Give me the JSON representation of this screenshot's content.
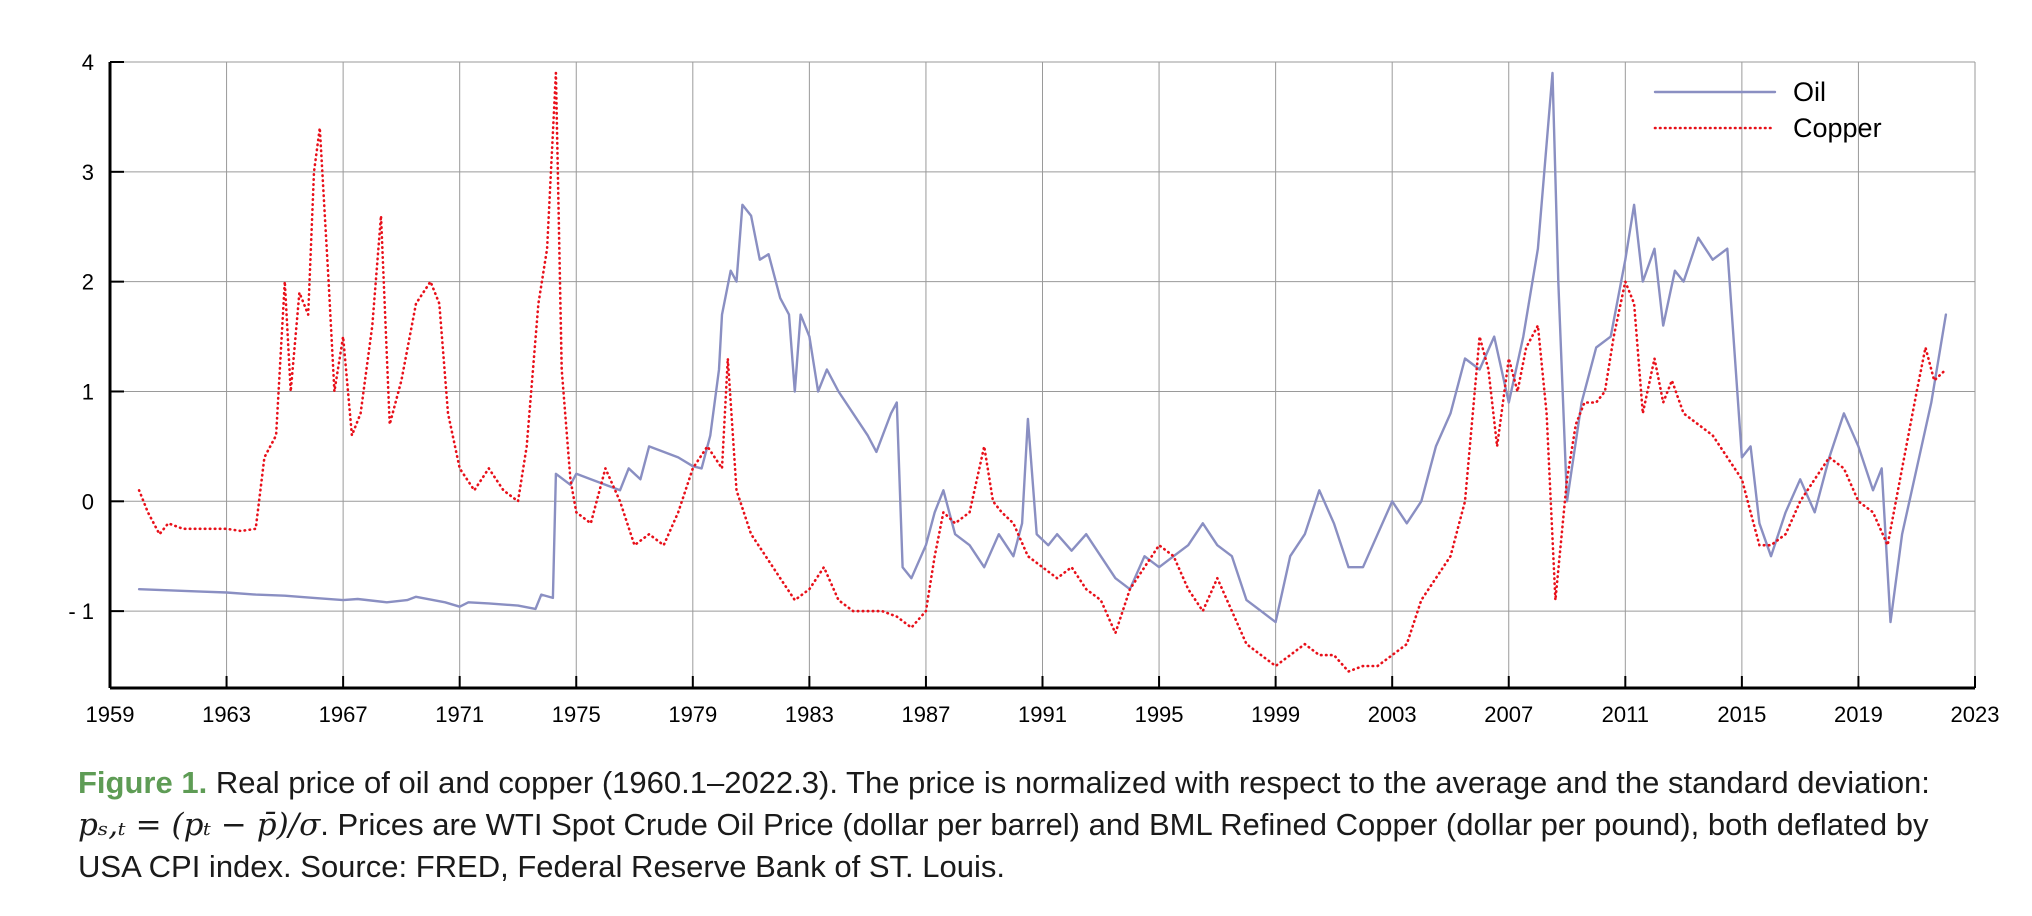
{
  "chart_data": {
    "type": "line",
    "title": "",
    "xlabel": "",
    "ylabel": "",
    "xlim": [
      1959,
      2023
    ],
    "ylim": [
      -1.7,
      4
    ],
    "x_ticks": [
      1959,
      1963,
      1967,
      1971,
      1975,
      1979,
      1983,
      1987,
      1991,
      1995,
      1999,
      2003,
      2007,
      2011,
      2015,
      2019,
      2023
    ],
    "x_tick_labels": [
      "1959",
      "1963",
      "1967",
      "1971",
      "1975",
      "1979",
      "1983",
      "1987",
      "1991",
      "1995",
      "1999",
      "2003",
      "2007",
      "2011",
      "2015",
      "2019",
      "2023"
    ],
    "y_ticks": [
      -1,
      0,
      1,
      2,
      3,
      4
    ],
    "y_tick_labels": [
      "- 1",
      "0",
      "1",
      "2",
      "3",
      "4"
    ],
    "grid": true,
    "legend_position": "top-right",
    "series": [
      {
        "name": "Oil",
        "style": "solid",
        "color": "#8a8fc2",
        "points": [
          [
            1960.0,
            -0.8
          ],
          [
            1961.0,
            -0.81
          ],
          [
            1962.0,
            -0.82
          ],
          [
            1963.0,
            -0.83
          ],
          [
            1964.0,
            -0.85
          ],
          [
            1965.0,
            -0.86
          ],
          [
            1966.0,
            -0.88
          ],
          [
            1967.0,
            -0.9
          ],
          [
            1967.5,
            -0.89
          ],
          [
            1968.5,
            -0.92
          ],
          [
            1969.2,
            -0.9
          ],
          [
            1969.5,
            -0.87
          ],
          [
            1970.5,
            -0.92
          ],
          [
            1971.0,
            -0.96
          ],
          [
            1971.3,
            -0.92
          ],
          [
            1972.0,
            -0.93
          ],
          [
            1973.0,
            -0.95
          ],
          [
            1973.6,
            -0.98
          ],
          [
            1973.8,
            -0.85
          ],
          [
            1974.2,
            -0.88
          ],
          [
            1974.3,
            0.25
          ],
          [
            1974.8,
            0.15
          ],
          [
            1975.0,
            0.25
          ],
          [
            1975.5,
            0.2
          ],
          [
            1976.0,
            0.15
          ],
          [
            1976.5,
            0.1
          ],
          [
            1976.8,
            0.3
          ],
          [
            1977.2,
            0.2
          ],
          [
            1977.5,
            0.5
          ],
          [
            1978.0,
            0.45
          ],
          [
            1978.5,
            0.4
          ],
          [
            1979.0,
            0.32
          ],
          [
            1979.3,
            0.3
          ],
          [
            1979.6,
            0.6
          ],
          [
            1979.9,
            1.2
          ],
          [
            1980.0,
            1.7
          ],
          [
            1980.3,
            2.1
          ],
          [
            1980.5,
            2.0
          ],
          [
            1980.7,
            2.7
          ],
          [
            1981.0,
            2.6
          ],
          [
            1981.3,
            2.2
          ],
          [
            1981.6,
            2.25
          ],
          [
            1982.0,
            1.85
          ],
          [
            1982.3,
            1.7
          ],
          [
            1982.5,
            1.0
          ],
          [
            1982.7,
            1.7
          ],
          [
            1983.0,
            1.5
          ],
          [
            1983.3,
            1.0
          ],
          [
            1983.6,
            1.2
          ],
          [
            1984.0,
            1.0
          ],
          [
            1984.5,
            0.8
          ],
          [
            1985.0,
            0.6
          ],
          [
            1985.3,
            0.45
          ],
          [
            1985.8,
            0.8
          ],
          [
            1986.0,
            0.9
          ],
          [
            1986.2,
            -0.6
          ],
          [
            1986.5,
            -0.7
          ],
          [
            1987.0,
            -0.4
          ],
          [
            1987.3,
            -0.1
          ],
          [
            1987.6,
            0.1
          ],
          [
            1988.0,
            -0.3
          ],
          [
            1988.5,
            -0.4
          ],
          [
            1989.0,
            -0.6
          ],
          [
            1989.5,
            -0.3
          ],
          [
            1990.0,
            -0.5
          ],
          [
            1990.3,
            -0.2
          ],
          [
            1990.5,
            0.75
          ],
          [
            1990.8,
            -0.3
          ],
          [
            1991.2,
            -0.4
          ],
          [
            1991.5,
            -0.3
          ],
          [
            1992.0,
            -0.45
          ],
          [
            1992.5,
            -0.3
          ],
          [
            1993.0,
            -0.5
          ],
          [
            1993.5,
            -0.7
          ],
          [
            1994.0,
            -0.8
          ],
          [
            1994.5,
            -0.5
          ],
          [
            1995.0,
            -0.6
          ],
          [
            1995.5,
            -0.5
          ],
          [
            1996.0,
            -0.4
          ],
          [
            1996.5,
            -0.2
          ],
          [
            1997.0,
            -0.4
          ],
          [
            1997.5,
            -0.5
          ],
          [
            1998.0,
            -0.9
          ],
          [
            1998.5,
            -1.0
          ],
          [
            1999.0,
            -1.1
          ],
          [
            1999.5,
            -0.5
          ],
          [
            2000.0,
            -0.3
          ],
          [
            2000.5,
            0.1
          ],
          [
            2001.0,
            -0.2
          ],
          [
            2001.5,
            -0.6
          ],
          [
            2002.0,
            -0.6
          ],
          [
            2002.5,
            -0.3
          ],
          [
            2003.0,
            0.0
          ],
          [
            2003.5,
            -0.2
          ],
          [
            2004.0,
            0.0
          ],
          [
            2004.5,
            0.5
          ],
          [
            2005.0,
            0.8
          ],
          [
            2005.5,
            1.3
          ],
          [
            2006.0,
            1.2
          ],
          [
            2006.5,
            1.5
          ],
          [
            2007.0,
            0.9
          ],
          [
            2007.5,
            1.5
          ],
          [
            2008.0,
            2.3
          ],
          [
            2008.5,
            3.9
          ],
          [
            2008.7,
            2.0
          ],
          [
            2009.0,
            0.0
          ],
          [
            2009.5,
            0.9
          ],
          [
            2010.0,
            1.4
          ],
          [
            2010.5,
            1.5
          ],
          [
            2011.0,
            2.2
          ],
          [
            2011.3,
            2.7
          ],
          [
            2011.6,
            2.0
          ],
          [
            2012.0,
            2.3
          ],
          [
            2012.3,
            1.6
          ],
          [
            2012.7,
            2.1
          ],
          [
            2013.0,
            2.0
          ],
          [
            2013.5,
            2.4
          ],
          [
            2014.0,
            2.2
          ],
          [
            2014.5,
            2.3
          ],
          [
            2015.0,
            0.4
          ],
          [
            2015.3,
            0.5
          ],
          [
            2015.6,
            -0.2
          ],
          [
            2016.0,
            -0.5
          ],
          [
            2016.5,
            -0.1
          ],
          [
            2017.0,
            0.2
          ],
          [
            2017.5,
            -0.1
          ],
          [
            2018.0,
            0.4
          ],
          [
            2018.5,
            0.8
          ],
          [
            2019.0,
            0.5
          ],
          [
            2019.5,
            0.1
          ],
          [
            2019.8,
            0.3
          ],
          [
            2020.1,
            -1.1
          ],
          [
            2020.5,
            -0.3
          ],
          [
            2021.0,
            0.3
          ],
          [
            2021.5,
            0.9
          ],
          [
            2022.0,
            1.7
          ]
        ]
      },
      {
        "name": "Copper",
        "style": "dotted",
        "color": "#e8101a",
        "points": [
          [
            1960.0,
            0.1
          ],
          [
            1960.3,
            -0.1
          ],
          [
            1960.7,
            -0.3
          ],
          [
            1961.0,
            -0.2
          ],
          [
            1961.5,
            -0.25
          ],
          [
            1962.0,
            -0.25
          ],
          [
            1963.0,
            -0.25
          ],
          [
            1963.5,
            -0.27
          ],
          [
            1964.0,
            -0.25
          ],
          [
            1964.3,
            0.4
          ],
          [
            1964.7,
            0.6
          ],
          [
            1965.0,
            2.0
          ],
          [
            1965.2,
            1.0
          ],
          [
            1965.5,
            1.9
          ],
          [
            1965.8,
            1.7
          ],
          [
            1966.0,
            3.0
          ],
          [
            1966.2,
            3.4
          ],
          [
            1966.5,
            2.0
          ],
          [
            1966.7,
            1.0
          ],
          [
            1967.0,
            1.5
          ],
          [
            1967.3,
            0.6
          ],
          [
            1967.6,
            0.8
          ],
          [
            1968.0,
            1.6
          ],
          [
            1968.3,
            2.6
          ],
          [
            1968.6,
            0.7
          ],
          [
            1969.0,
            1.1
          ],
          [
            1969.5,
            1.8
          ],
          [
            1970.0,
            2.0
          ],
          [
            1970.3,
            1.8
          ],
          [
            1970.6,
            0.8
          ],
          [
            1971.0,
            0.3
          ],
          [
            1971.5,
            0.1
          ],
          [
            1972.0,
            0.3
          ],
          [
            1972.5,
            0.1
          ],
          [
            1973.0,
            0.0
          ],
          [
            1973.3,
            0.5
          ],
          [
            1973.7,
            1.8
          ],
          [
            1974.0,
            2.3
          ],
          [
            1974.3,
            3.9
          ],
          [
            1974.5,
            1.2
          ],
          [
            1974.8,
            0.2
          ],
          [
            1975.0,
            -0.1
          ],
          [
            1975.5,
            -0.2
          ],
          [
            1976.0,
            0.3
          ],
          [
            1976.5,
            0.0
          ],
          [
            1977.0,
            -0.4
          ],
          [
            1977.5,
            -0.3
          ],
          [
            1978.0,
            -0.4
          ],
          [
            1978.5,
            -0.1
          ],
          [
            1979.0,
            0.3
          ],
          [
            1979.5,
            0.5
          ],
          [
            1980.0,
            0.3
          ],
          [
            1980.2,
            1.3
          ],
          [
            1980.5,
            0.1
          ],
          [
            1981.0,
            -0.3
          ],
          [
            1981.5,
            -0.5
          ],
          [
            1982.0,
            -0.7
          ],
          [
            1982.5,
            -0.9
          ],
          [
            1983.0,
            -0.8
          ],
          [
            1983.5,
            -0.6
          ],
          [
            1984.0,
            -0.9
          ],
          [
            1984.5,
            -1.0
          ],
          [
            1985.0,
            -1.0
          ],
          [
            1985.5,
            -1.0
          ],
          [
            1986.0,
            -1.05
          ],
          [
            1986.5,
            -1.15
          ],
          [
            1987.0,
            -1.0
          ],
          [
            1987.3,
            -0.5
          ],
          [
            1987.6,
            -0.1
          ],
          [
            1988.0,
            -0.2
          ],
          [
            1988.5,
            -0.1
          ],
          [
            1989.0,
            0.5
          ],
          [
            1989.3,
            0.0
          ],
          [
            1989.6,
            -0.1
          ],
          [
            1990.0,
            -0.2
          ],
          [
            1990.5,
            -0.5
          ],
          [
            1991.0,
            -0.6
          ],
          [
            1991.5,
            -0.7
          ],
          [
            1992.0,
            -0.6
          ],
          [
            1992.5,
            -0.8
          ],
          [
            1993.0,
            -0.9
          ],
          [
            1993.5,
            -1.2
          ],
          [
            1994.0,
            -0.8
          ],
          [
            1994.5,
            -0.6
          ],
          [
            1995.0,
            -0.4
          ],
          [
            1995.5,
            -0.5
          ],
          [
            1996.0,
            -0.8
          ],
          [
            1996.5,
            -1.0
          ],
          [
            1997.0,
            -0.7
          ],
          [
            1997.5,
            -1.0
          ],
          [
            1998.0,
            -1.3
          ],
          [
            1998.5,
            -1.4
          ],
          [
            1999.0,
            -1.5
          ],
          [
            1999.5,
            -1.4
          ],
          [
            2000.0,
            -1.3
          ],
          [
            2000.5,
            -1.4
          ],
          [
            2001.0,
            -1.4
          ],
          [
            2001.5,
            -1.55
          ],
          [
            2002.0,
            -1.5
          ],
          [
            2002.5,
            -1.5
          ],
          [
            2003.0,
            -1.4
          ],
          [
            2003.5,
            -1.3
          ],
          [
            2004.0,
            -0.9
          ],
          [
            2004.5,
            -0.7
          ],
          [
            2005.0,
            -0.5
          ],
          [
            2005.5,
            0.0
          ],
          [
            2006.0,
            1.5
          ],
          [
            2006.3,
            1.2
          ],
          [
            2006.6,
            0.5
          ],
          [
            2007.0,
            1.3
          ],
          [
            2007.3,
            1.0
          ],
          [
            2007.6,
            1.4
          ],
          [
            2008.0,
            1.6
          ],
          [
            2008.3,
            0.8
          ],
          [
            2008.6,
            -0.9
          ],
          [
            2009.0,
            0.2
          ],
          [
            2009.3,
            0.7
          ],
          [
            2009.6,
            0.9
          ],
          [
            2010.0,
            0.9
          ],
          [
            2010.3,
            1.0
          ],
          [
            2010.6,
            1.5
          ],
          [
            2011.0,
            2.0
          ],
          [
            2011.3,
            1.8
          ],
          [
            2011.6,
            0.8
          ],
          [
            2012.0,
            1.3
          ],
          [
            2012.3,
            0.9
          ],
          [
            2012.6,
            1.1
          ],
          [
            2013.0,
            0.8
          ],
          [
            2013.5,
            0.7
          ],
          [
            2014.0,
            0.6
          ],
          [
            2014.5,
            0.4
          ],
          [
            2015.0,
            0.2
          ],
          [
            2015.3,
            -0.1
          ],
          [
            2015.6,
            -0.4
          ],
          [
            2016.0,
            -0.4
          ],
          [
            2016.5,
            -0.3
          ],
          [
            2017.0,
            0.0
          ],
          [
            2017.5,
            0.2
          ],
          [
            2018.0,
            0.4
          ],
          [
            2018.5,
            0.3
          ],
          [
            2019.0,
            0.0
          ],
          [
            2019.5,
            -0.1
          ],
          [
            2020.0,
            -0.4
          ],
          [
            2020.5,
            0.3
          ],
          [
            2021.0,
            1.0
          ],
          [
            2021.3,
            1.4
          ],
          [
            2021.6,
            1.1
          ],
          [
            2022.0,
            1.2
          ]
        ]
      }
    ]
  },
  "caption": {
    "figure_label": "Figure 1.",
    "line1": "Real price of oil and copper (1960.1–2022.3). The price is normalized with respect to the average and the standard deviation:",
    "formula": "pₛ,ₜ = (pₜ − p̄)/σ",
    "line2": ". Prices are WTI Spot Crude Oil Price (dollar per barrel) and BML Refined Copper (dollar per pound), both deflated by",
    "line3": "USA CPI index. Source: FRED, Federal Reserve Bank of ST. Louis."
  }
}
